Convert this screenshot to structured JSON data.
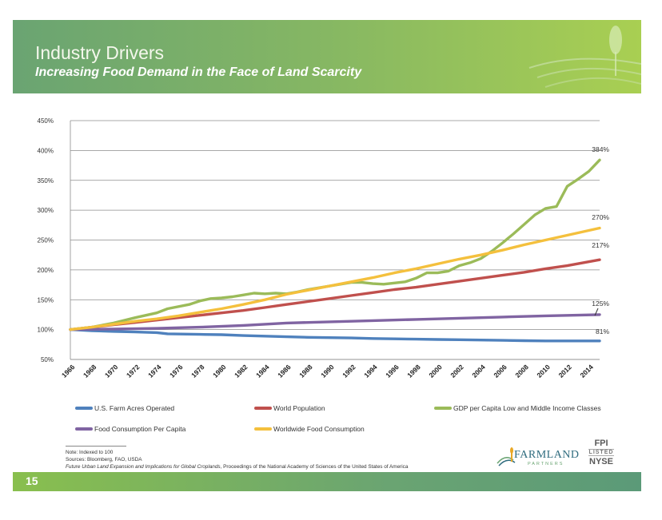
{
  "header": {
    "title": "Industry Drivers",
    "subtitle": "Increasing Food Demand in the Face of Land Scarcity"
  },
  "chart_data": {
    "type": "line",
    "y_ticks": [
      "50%",
      "100%",
      "150%",
      "200%",
      "250%",
      "300%",
      "350%",
      "400%",
      "450%"
    ],
    "ylim": [
      50,
      450
    ],
    "x": [
      1966,
      1968,
      1970,
      1972,
      1974,
      1976,
      1978,
      1980,
      1982,
      1984,
      1986,
      1988,
      1990,
      1992,
      1994,
      1996,
      1998,
      2000,
      2002,
      2004,
      2006,
      2008,
      2010,
      2012,
      2014
    ],
    "x_tick_labels": [
      "1966",
      "1968",
      "1970",
      "1972",
      "1974",
      "1976",
      "1978",
      "1980",
      "1982",
      "1984",
      "1986",
      "1988",
      "1990",
      "1992",
      "1994",
      "1996",
      "1998",
      "2000",
      "2002",
      "2004",
      "2006",
      "2008",
      "2010",
      "2012",
      "2014"
    ],
    "xlim": [
      1966,
      2015
    ],
    "series": [
      {
        "name": "U.S. Farm Acres Operated",
        "color": "#4f81bd",
        "points": [
          [
            1966,
            100
          ],
          [
            1968,
            98
          ],
          [
            1970,
            97
          ],
          [
            1972,
            96
          ],
          [
            1974,
            95
          ],
          [
            1975,
            93
          ],
          [
            1978,
            92
          ],
          [
            1980,
            91.5
          ],
          [
            1982,
            90
          ],
          [
            1984,
            89
          ],
          [
            1986,
            88
          ],
          [
            1988,
            87
          ],
          [
            1990,
            86.5
          ],
          [
            1992,
            86
          ],
          [
            1994,
            85
          ],
          [
            1996,
            84.5
          ],
          [
            1998,
            84
          ],
          [
            2000,
            83.5
          ],
          [
            2002,
            83
          ],
          [
            2004,
            82.5
          ],
          [
            2006,
            82
          ],
          [
            2008,
            81.5
          ],
          [
            2010,
            81
          ],
          [
            2012,
            81
          ],
          [
            2015,
            81
          ]
        ],
        "end_label": "81%"
      },
      {
        "name": "World Population",
        "color": "#c0504d",
        "points": [
          [
            1966,
            100
          ],
          [
            1968,
            104
          ],
          [
            1970,
            108
          ],
          [
            1972,
            112
          ],
          [
            1974,
            116
          ],
          [
            1976,
            120
          ],
          [
            1978,
            124
          ],
          [
            1980,
            128
          ],
          [
            1982,
            132
          ],
          [
            1984,
            137
          ],
          [
            1986,
            142
          ],
          [
            1988,
            147
          ],
          [
            1990,
            152
          ],
          [
            1992,
            157
          ],
          [
            1994,
            162
          ],
          [
            1996,
            167
          ],
          [
            1998,
            171
          ],
          [
            2000,
            176
          ],
          [
            2002,
            181
          ],
          [
            2004,
            186
          ],
          [
            2006,
            191
          ],
          [
            2008,
            196
          ],
          [
            2010,
            202
          ],
          [
            2012,
            207
          ],
          [
            2015,
            217
          ]
        ],
        "end_label": "217%"
      },
      {
        "name": "GDP per Capita Low and Middle Income Classes",
        "color": "#9bbb59",
        "points": [
          [
            1966,
            100
          ],
          [
            1968,
            104
          ],
          [
            1970,
            111
          ],
          [
            1972,
            120
          ],
          [
            1974,
            128
          ],
          [
            1975,
            135
          ],
          [
            1977,
            142
          ],
          [
            1978,
            148
          ],
          [
            1979,
            152
          ],
          [
            1980,
            153
          ],
          [
            1981,
            155
          ],
          [
            1982,
            158
          ],
          [
            1983,
            161
          ],
          [
            1984,
            160
          ],
          [
            1985,
            161
          ],
          [
            1986,
            160
          ],
          [
            1987,
            163
          ],
          [
            1988,
            167
          ],
          [
            1990,
            173
          ],
          [
            1991,
            176
          ],
          [
            1992,
            179
          ],
          [
            1993,
            179
          ],
          [
            1994,
            177
          ],
          [
            1995,
            176
          ],
          [
            1996,
            178
          ],
          [
            1997,
            180
          ],
          [
            1998,
            186
          ],
          [
            1999,
            195
          ],
          [
            2000,
            195
          ],
          [
            2001,
            198
          ],
          [
            2002,
            207
          ],
          [
            2003,
            212
          ],
          [
            2004,
            219
          ],
          [
            2005,
            231
          ],
          [
            2006,
            245
          ],
          [
            2007,
            260
          ],
          [
            2008,
            276
          ],
          [
            2009,
            292
          ],
          [
            2010,
            303
          ],
          [
            2011,
            306
          ],
          [
            2012,
            340
          ],
          [
            2013,
            352
          ],
          [
            2014,
            365
          ],
          [
            2015,
            384
          ]
        ],
        "end_label": "384%"
      },
      {
        "name": "Food Consumption Per Capita",
        "color": "#8064a2",
        "points": [
          [
            1966,
            100
          ],
          [
            1970,
            101
          ],
          [
            1974,
            102
          ],
          [
            1978,
            104
          ],
          [
            1982,
            107
          ],
          [
            1986,
            111
          ],
          [
            1990,
            113
          ],
          [
            1994,
            115
          ],
          [
            1998,
            117
          ],
          [
            2002,
            119
          ],
          [
            2006,
            121
          ],
          [
            2010,
            123
          ],
          [
            2015,
            125
          ]
        ],
        "end_label": "125%"
      },
      {
        "name": "Worldwide Food Consumption",
        "color": "#f4c03d",
        "points": [
          [
            1966,
            100
          ],
          [
            1968,
            104
          ],
          [
            1970,
            109
          ],
          [
            1972,
            114
          ],
          [
            1974,
            118
          ],
          [
            1976,
            123
          ],
          [
            1978,
            129
          ],
          [
            1980,
            135
          ],
          [
            1982,
            142
          ],
          [
            1984,
            150
          ],
          [
            1986,
            159
          ],
          [
            1988,
            166
          ],
          [
            1990,
            173
          ],
          [
            1992,
            180
          ],
          [
            1994,
            187
          ],
          [
            1996,
            195
          ],
          [
            1998,
            202
          ],
          [
            2000,
            210
          ],
          [
            2002,
            218
          ],
          [
            2004,
            225
          ],
          [
            2006,
            233
          ],
          [
            2008,
            242
          ],
          [
            2010,
            250
          ],
          [
            2012,
            258
          ],
          [
            2015,
            270
          ]
        ],
        "end_label": "270%"
      }
    ]
  },
  "legend": [
    {
      "label": "U.S. Farm Acres Operated",
      "color": "#4f81bd"
    },
    {
      "label": "World Population",
      "color": "#c0504d"
    },
    {
      "label": "GDP per Capita Low and Middle Income Classes",
      "color": "#9bbb59"
    },
    {
      "label": "Food Consumption Per Capita",
      "color": "#8064a2"
    },
    {
      "label": "Worldwide Food Consumption",
      "color": "#f4c03d"
    }
  ],
  "footer": {
    "note": "Note: Indexed to 100",
    "sources": "Sources: Bloomberg, FAO, USDA",
    "citation_title": "Future Urban Land Expansion and Implications for Global Croplands",
    "citation_rest": ", Proceedings of the National Academy of Sciences of the United States of America",
    "page_number": "15"
  },
  "logo": {
    "name": "FARMLAND",
    "tagline": "PARTNERS",
    "ticker": "FPI",
    "listed": "LISTED",
    "exchange": "NYSE"
  }
}
